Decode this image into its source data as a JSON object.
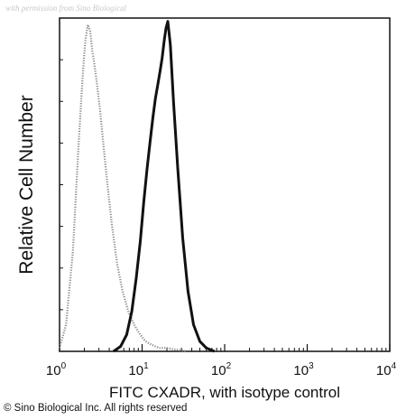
{
  "watermark": "with permission from Sino Biological",
  "copyright": "© Sino Biological Inc. All rights reserved",
  "chart_data": {
    "type": "line",
    "title": "",
    "xlabel": "FITC CXADR, with isotype control",
    "ylabel": "Relative Cell Number",
    "x_scale": "log",
    "xlim": [
      1,
      10000
    ],
    "ylim": [
      0,
      1.0
    ],
    "grid": false,
    "x_ticks": [
      {
        "base": "10",
        "exp": "0"
      },
      {
        "base": "10",
        "exp": "1"
      },
      {
        "base": "10",
        "exp": "2"
      },
      {
        "base": "10",
        "exp": "3"
      },
      {
        "base": "10",
        "exp": "4"
      }
    ],
    "series": [
      {
        "role": "isotype control",
        "color": "#8a8a8a",
        "style": "dotted",
        "x": [
          1.0,
          1.2,
          1.45,
          1.7,
          1.9,
          2.05,
          2.2,
          2.35,
          2.5,
          2.65,
          2.85,
          3.1,
          3.4,
          3.8,
          4.3,
          5.0,
          5.8,
          6.8,
          8.0,
          9.5,
          11.0,
          13.0,
          16.0,
          20.0,
          26.0,
          35.0
        ],
        "y": [
          0.01,
          0.08,
          0.3,
          0.62,
          0.82,
          0.93,
          0.98,
          0.96,
          0.9,
          0.86,
          0.8,
          0.72,
          0.62,
          0.5,
          0.38,
          0.26,
          0.18,
          0.12,
          0.08,
          0.05,
          0.03,
          0.02,
          0.01,
          0.01,
          0.005,
          0.0
        ]
      },
      {
        "role": "CXADR",
        "color": "#111111",
        "style": "solid",
        "x": [
          4.5,
          5.5,
          6.5,
          7.5,
          8.5,
          9.5,
          10.5,
          11.5,
          12.5,
          13.5,
          14.5,
          15.5,
          16.5,
          17.5,
          18.5,
          19.5,
          20.5,
          22.0,
          24.0,
          27.0,
          31.0,
          36.0,
          42.0,
          50.0,
          60.0,
          75.0
        ],
        "y": [
          0.0,
          0.015,
          0.05,
          0.12,
          0.22,
          0.33,
          0.45,
          0.55,
          0.63,
          0.7,
          0.76,
          0.8,
          0.84,
          0.88,
          0.93,
          0.97,
          0.99,
          0.92,
          0.75,
          0.55,
          0.34,
          0.18,
          0.08,
          0.03,
          0.01,
          0.0
        ]
      }
    ]
  }
}
